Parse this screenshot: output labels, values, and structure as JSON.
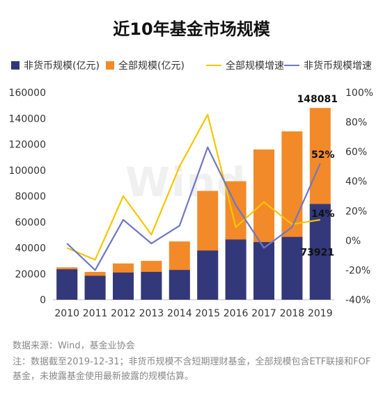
{
  "title": "近10年基金市场规模",
  "watermark": "Wind",
  "colors": {
    "nonmoney_bar": "#33387a",
    "total_bar": "#f28a2a",
    "total_growth": "#f7c600",
    "nonmoney_growth": "#6f76c4",
    "axis_text": "#333333",
    "grid": "#e6e6e6"
  },
  "chart_data": {
    "type": "bar",
    "title": "近10年基金市场规模",
    "categories": [
      "2010",
      "2011",
      "2012",
      "2013",
      "2014",
      "2015",
      "2016",
      "2017",
      "2018",
      "2019"
    ],
    "series": [
      {
        "name": "非货币规模(亿元)",
        "kind": "bar",
        "axis": "left",
        "values": [
          23500,
          18500,
          21000,
          21500,
          23000,
          38000,
          46500,
          44500,
          48500,
          73921
        ]
      },
      {
        "name": "全部规模(亿元)",
        "kind": "bar",
        "axis": "left",
        "values": [
          25000,
          21500,
          28000,
          30000,
          45000,
          84000,
          91500,
          116000,
          130000,
          148081
        ]
      },
      {
        "name": "全部规模增速",
        "kind": "line",
        "axis": "right",
        "values": [
          -5,
          -13,
          30,
          4,
          50,
          85,
          9,
          26,
          11,
          14
        ]
      },
      {
        "name": "非货币规模增速",
        "kind": "line",
        "axis": "right",
        "values": [
          -2,
          -20,
          14,
          -2,
          10,
          63,
          24,
          -5,
          9,
          52
        ]
      }
    ],
    "y_left": {
      "min": 0,
      "max": 160000,
      "ticks": [
        "0",
        "20000",
        "40000",
        "60000",
        "80000",
        "100000",
        "120000",
        "140000",
        "160000"
      ]
    },
    "y_right": {
      "min": -40,
      "max": 100,
      "ticks": [
        "-40%",
        "-20%",
        "0%",
        "20%",
        "40%",
        "60%",
        "80%",
        "100%"
      ]
    },
    "data_labels": {
      "total_2019": "148081",
      "nonmoney_2019": "73921",
      "total_growth_2019": "14%",
      "nonmoney_growth_2019": "52%"
    },
    "legend_position": "top",
    "grid": false
  },
  "footer": {
    "source": "数据来源：Wind，基金业协会",
    "note": "注：数据截至2019-12-31；非货币规模不含短期理财基金，全部规模包含ETF联接和FOF基金，未披露基金使用最新披露的规模估算。"
  }
}
